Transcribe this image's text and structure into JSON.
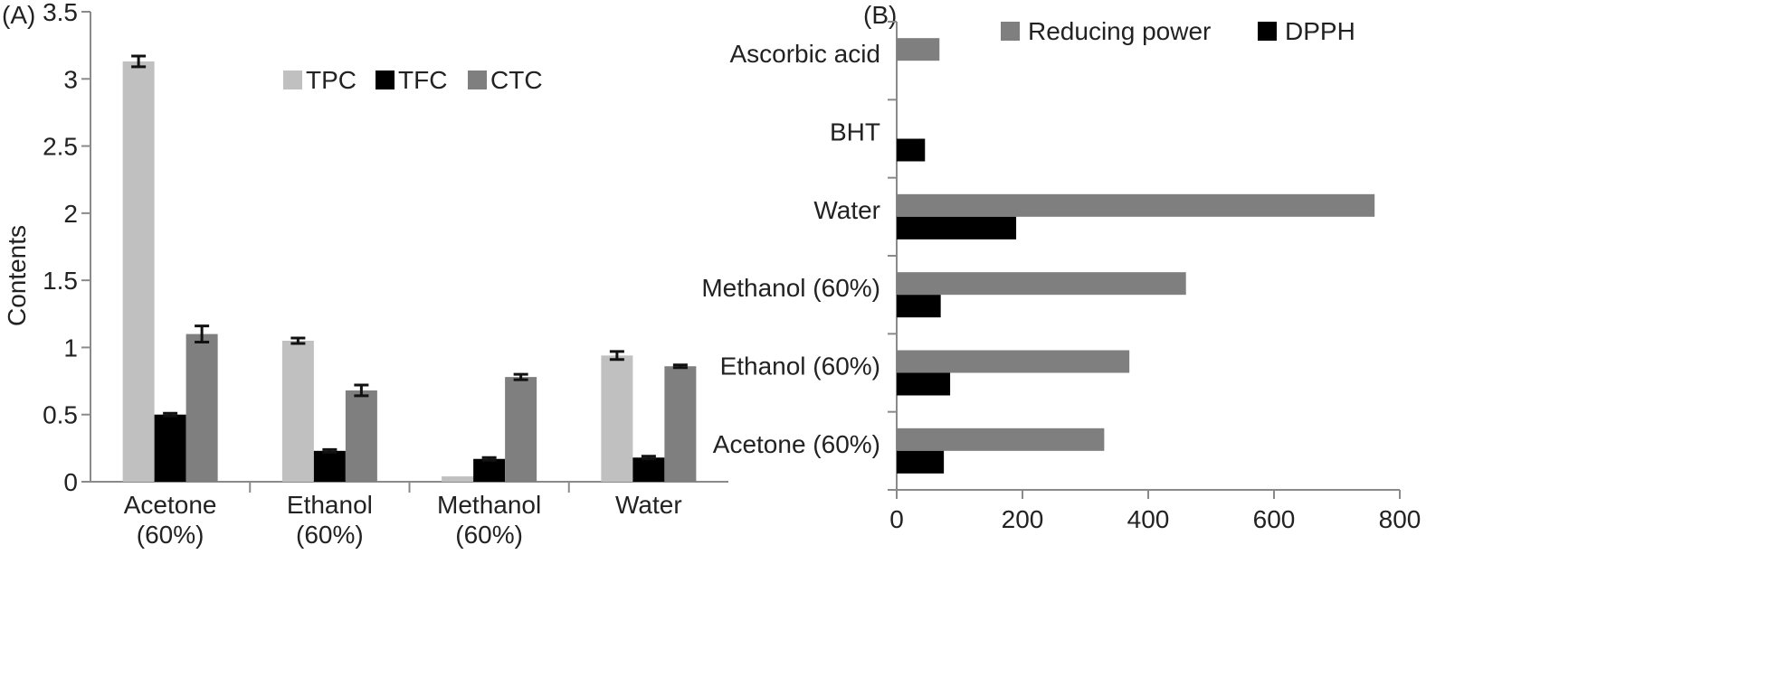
{
  "panel_a_label": "(A)",
  "panel_b_label": "(B)",
  "chart_data": [
    {
      "type": "bar",
      "orientation": "vertical",
      "panel": "(A)",
      "ylabel": "Contents",
      "xlabel": "",
      "ylim": [
        0,
        3.5
      ],
      "yticks": [
        "0",
        "0.5",
        "1",
        "1.5",
        "2",
        "2.5",
        "3",
        "3.5"
      ],
      "ytick_values": [
        0,
        0.5,
        1,
        1.5,
        2,
        2.5,
        3,
        3.5
      ],
      "categories": [
        [
          "Acetone",
          "(60%)"
        ],
        [
          "Ethanol",
          "(60%)"
        ],
        [
          "Methanol",
          "(60%)"
        ],
        [
          "Water"
        ]
      ],
      "legend_position": "top-center",
      "series": [
        {
          "name": "TPC",
          "color": "#c0c0c0",
          "values": [
            3.13,
            1.05,
            0.04,
            0.94
          ],
          "errors": [
            0.04,
            0.02,
            null,
            0.03
          ]
        },
        {
          "name": "TFC",
          "color": "#000000",
          "values": [
            0.5,
            0.23,
            0.17,
            0.18
          ],
          "errors": [
            0.01,
            0.01,
            0.01,
            0.01
          ]
        },
        {
          "name": "CTC",
          "color": "#7f7f7f",
          "values": [
            1.1,
            0.68,
            0.78,
            0.86
          ],
          "errors": [
            0.06,
            0.04,
            0.02,
            0.01
          ]
        }
      ]
    },
    {
      "type": "bar",
      "orientation": "horizontal",
      "panel": "(B)",
      "xlim": [
        0,
        800
      ],
      "xticks": [
        "0",
        "200",
        "400",
        "600",
        "800"
      ],
      "xtick_values": [
        0,
        200,
        400,
        600,
        800
      ],
      "categories": [
        "Ascorbic acid",
        "BHT",
        "Water",
        "Methanol (60%)",
        "Ethanol (60%)",
        "Acetone (60%)"
      ],
      "legend_position": "top",
      "series": [
        {
          "name": "Reducing power",
          "color": "#7f7f7f",
          "values": [
            68,
            null,
            760,
            460,
            370,
            330
          ]
        },
        {
          "name": "DPPH",
          "color": "#000000",
          "values": [
            null,
            45,
            190,
            70,
            85,
            75
          ]
        }
      ]
    }
  ]
}
